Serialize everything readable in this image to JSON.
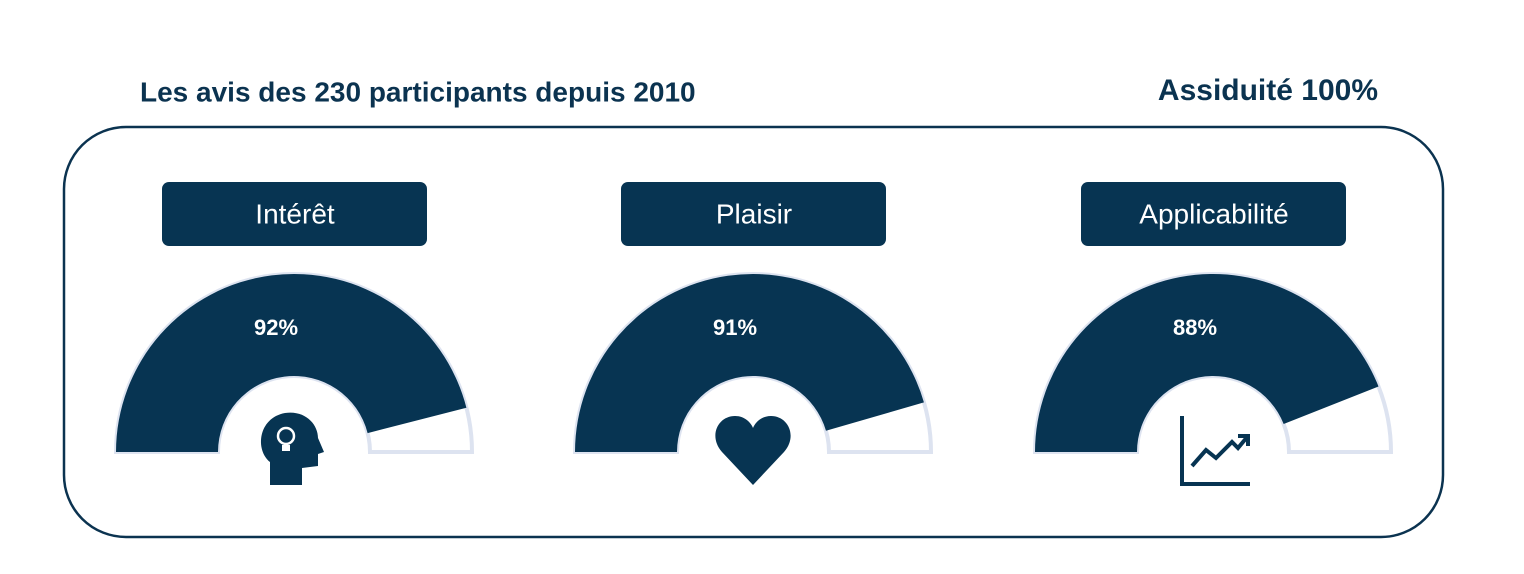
{
  "header": {
    "title": "Les avis des 230 participants depuis 2010",
    "attendance": "Assiduité 100%"
  },
  "chart_data": [
    {
      "type": "gauge",
      "title": "Intérêt",
      "values": [
        92
      ],
      "value_labels": [
        "92%"
      ],
      "ylim": [
        0,
        100
      ],
      "color": "#073452"
    },
    {
      "type": "gauge",
      "title": "Plaisir",
      "values": [
        91
      ],
      "value_labels": [
        "91%"
      ],
      "ylim": [
        0,
        100
      ],
      "color": "#073452"
    },
    {
      "type": "gauge",
      "title": "Applicabilité",
      "values": [
        88
      ],
      "value_labels": [
        "88%"
      ],
      "ylim": [
        0,
        100
      ],
      "color": "#073452"
    }
  ]
}
